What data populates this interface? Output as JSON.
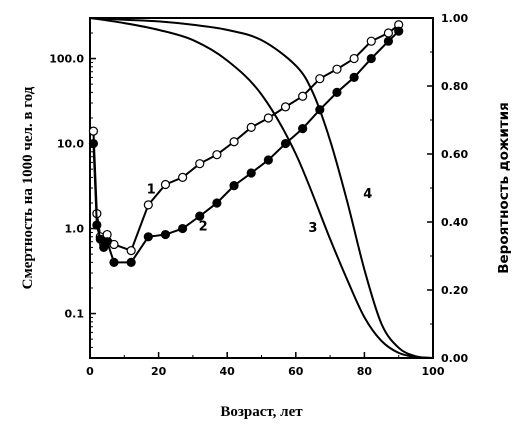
{
  "chart_data": {
    "type": "line",
    "xlabel": "Возраст, лет",
    "ylabel_left": "Смертность на 1000 чел. в год",
    "ylabel_right": "Вероятность дожития",
    "x_ticks": [
      "0",
      "20",
      "40",
      "60",
      "80",
      "100"
    ],
    "y_left_ticks": [
      "0.1",
      "1.0",
      "10.0",
      "100.0"
    ],
    "y_right_ticks": [
      "0.00",
      "0.20",
      "0.40",
      "0.60",
      "0.80",
      "1.00"
    ],
    "xlim": [
      0,
      100
    ],
    "ylim_left": [
      0.03,
      300
    ],
    "ylim_left_scale": "log",
    "ylim_right": [
      0,
      1
    ],
    "grid": false,
    "series": [
      {
        "name": "1",
        "axis": "left",
        "marker": "open-circle",
        "x": [
          1,
          2,
          3,
          4,
          5,
          7,
          12,
          17,
          22,
          27,
          32,
          37,
          42,
          47,
          52,
          57,
          62,
          67,
          72,
          77,
          82,
          87,
          90
        ],
        "y": [
          14,
          1.5,
          0.8,
          0.65,
          0.85,
          0.65,
          0.55,
          1.9,
          3.3,
          4.0,
          5.8,
          7.4,
          10.5,
          15.5,
          20,
          27,
          36,
          58,
          75,
          100,
          160,
          200,
          250
        ]
      },
      {
        "name": "2",
        "axis": "left",
        "marker": "filled-circle",
        "x": [
          1,
          2,
          3,
          4,
          5,
          7,
          12,
          17,
          22,
          27,
          32,
          37,
          42,
          47,
          52,
          57,
          62,
          67,
          72,
          77,
          82,
          87,
          90
        ],
        "y": [
          10,
          1.1,
          0.75,
          0.6,
          0.7,
          0.4,
          0.4,
          0.8,
          0.85,
          1.0,
          1.4,
          2.0,
          3.2,
          4.5,
          6.4,
          10,
          15,
          25,
          40,
          60,
          100,
          160,
          210
        ]
      },
      {
        "name": "3",
        "axis": "right",
        "marker": "none",
        "x": [
          0,
          10,
          20,
          30,
          40,
          50,
          60,
          70,
          75,
          80,
          85,
          90,
          95,
          100
        ],
        "y": [
          1.0,
          0.985,
          0.965,
          0.935,
          0.875,
          0.775,
          0.6,
          0.35,
          0.23,
          0.12,
          0.05,
          0.015,
          0.003,
          0.0
        ]
      },
      {
        "name": "4",
        "axis": "right",
        "marker": "none",
        "x": [
          0,
          10,
          20,
          30,
          40,
          50,
          60,
          65,
          70,
          75,
          80,
          85,
          90,
          95,
          100
        ],
        "y": [
          1.0,
          0.995,
          0.99,
          0.98,
          0.965,
          0.935,
          0.86,
          0.78,
          0.64,
          0.46,
          0.26,
          0.1,
          0.03,
          0.005,
          0.0
        ]
      }
    ]
  }
}
